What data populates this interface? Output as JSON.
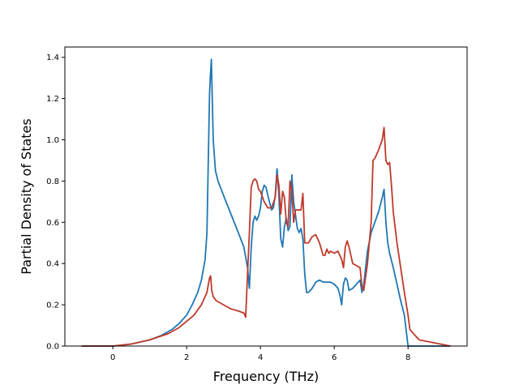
{
  "chart_data": {
    "type": "line",
    "title": "",
    "xlabel": "Frequency (THz)",
    "ylabel": "Partial Density of States",
    "xlim": [
      -1.3,
      9.6
    ],
    "ylim": [
      0.0,
      1.45
    ],
    "xticks": [
      0,
      2,
      4,
      6,
      8
    ],
    "xtick_labels": [
      "0",
      "2",
      "4",
      "6",
      "8"
    ],
    "yticks": [
      0.0,
      0.2,
      0.4,
      0.6,
      0.8,
      1.0,
      1.2,
      1.4
    ],
    "ytick_labels": [
      "0.0",
      "0.2",
      "0.4",
      "0.6",
      "0.8",
      "1.0",
      "1.2",
      "1.4"
    ],
    "grid": false,
    "legend": false,
    "series": [
      {
        "color": "#1f77b4",
        "x": [
          -0.85,
          0,
          0.5,
          1.0,
          1.3,
          1.6,
          1.8,
          2.0,
          2.15,
          2.3,
          2.4,
          2.5,
          2.55,
          2.62,
          2.64,
          2.67,
          2.72,
          2.78,
          2.85,
          3.0,
          3.2,
          3.4,
          3.55,
          3.65,
          3.7,
          3.75,
          3.8,
          3.85,
          3.9,
          3.95,
          4.0,
          4.05,
          4.1,
          4.15,
          4.2,
          4.3,
          4.35,
          4.4,
          4.45,
          4.5,
          4.55,
          4.6,
          4.65,
          4.7,
          4.75,
          4.8,
          4.85,
          4.9,
          5.0,
          5.05,
          5.1,
          5.15,
          5.2,
          5.25,
          5.3,
          5.4,
          5.5,
          5.6,
          5.7,
          5.8,
          5.9,
          6.0,
          6.1,
          6.15,
          6.2,
          6.25,
          6.3,
          6.35,
          6.4,
          6.5,
          6.6,
          6.7,
          6.75,
          6.8,
          6.9,
          7.0,
          7.1,
          7.2,
          7.3,
          7.35,
          7.4,
          7.45,
          7.5,
          7.6,
          7.7,
          7.8,
          7.9,
          8.0,
          8.05,
          8.3,
          9.15
        ],
        "y": [
          0.0,
          0.0,
          0.01,
          0.03,
          0.05,
          0.08,
          0.11,
          0.15,
          0.2,
          0.26,
          0.32,
          0.42,
          0.55,
          1.22,
          1.3,
          1.39,
          1.0,
          0.85,
          0.8,
          0.73,
          0.64,
          0.55,
          0.48,
          0.38,
          0.28,
          0.48,
          0.6,
          0.63,
          0.61,
          0.63,
          0.67,
          0.75,
          0.78,
          0.77,
          0.73,
          0.66,
          0.67,
          0.73,
          0.86,
          0.73,
          0.52,
          0.48,
          0.58,
          0.62,
          0.56,
          0.58,
          0.83,
          0.7,
          0.57,
          0.55,
          0.57,
          0.52,
          0.35,
          0.26,
          0.26,
          0.28,
          0.31,
          0.32,
          0.31,
          0.31,
          0.31,
          0.3,
          0.28,
          0.25,
          0.2,
          0.3,
          0.33,
          0.32,
          0.27,
          0.28,
          0.3,
          0.32,
          0.26,
          0.3,
          0.46,
          0.55,
          0.6,
          0.65,
          0.72,
          0.76,
          0.6,
          0.5,
          0.45,
          0.38,
          0.3,
          0.22,
          0.15,
          0.0,
          0.0,
          0.0,
          0.0
        ]
      },
      {
        "color": "#c0392b",
        "x": [
          -0.85,
          0,
          0.5,
          1.0,
          1.5,
          1.8,
          2.0,
          2.2,
          2.4,
          2.55,
          2.62,
          2.65,
          2.68,
          2.72,
          2.8,
          3.0,
          3.2,
          3.4,
          3.55,
          3.6,
          3.65,
          3.7,
          3.75,
          3.8,
          3.85,
          3.9,
          3.95,
          4.0,
          4.1,
          4.2,
          4.3,
          4.4,
          4.45,
          4.5,
          4.55,
          4.6,
          4.65,
          4.7,
          4.75,
          4.8,
          4.85,
          4.9,
          4.95,
          5.0,
          5.1,
          5.15,
          5.2,
          5.3,
          5.4,
          5.5,
          5.6,
          5.7,
          5.75,
          5.8,
          5.85,
          5.9,
          6.0,
          6.1,
          6.2,
          6.25,
          6.3,
          6.35,
          6.4,
          6.5,
          6.6,
          6.7,
          6.75,
          6.8,
          6.9,
          7.0,
          7.05,
          7.1,
          7.2,
          7.3,
          7.35,
          7.4,
          7.45,
          7.5,
          7.55,
          7.6,
          7.7,
          7.8,
          7.9,
          8.0,
          8.05,
          8.3,
          9.15
        ],
        "y": [
          0.0,
          0.0,
          0.01,
          0.03,
          0.06,
          0.09,
          0.12,
          0.15,
          0.2,
          0.26,
          0.33,
          0.34,
          0.27,
          0.24,
          0.22,
          0.2,
          0.18,
          0.17,
          0.16,
          0.14,
          0.35,
          0.55,
          0.77,
          0.8,
          0.81,
          0.8,
          0.76,
          0.75,
          0.7,
          0.67,
          0.67,
          0.72,
          0.83,
          0.78,
          0.64,
          0.75,
          0.72,
          0.6,
          0.58,
          0.8,
          0.75,
          0.6,
          0.66,
          0.66,
          0.66,
          0.74,
          0.5,
          0.5,
          0.53,
          0.54,
          0.5,
          0.44,
          0.44,
          0.47,
          0.45,
          0.46,
          0.45,
          0.46,
          0.42,
          0.38,
          0.48,
          0.51,
          0.48,
          0.4,
          0.39,
          0.38,
          0.29,
          0.27,
          0.4,
          0.6,
          0.9,
          0.91,
          0.95,
          1.0,
          1.06,
          0.9,
          0.88,
          0.89,
          0.78,
          0.65,
          0.5,
          0.38,
          0.26,
          0.15,
          0.08,
          0.03,
          0.0
        ]
      }
    ]
  }
}
